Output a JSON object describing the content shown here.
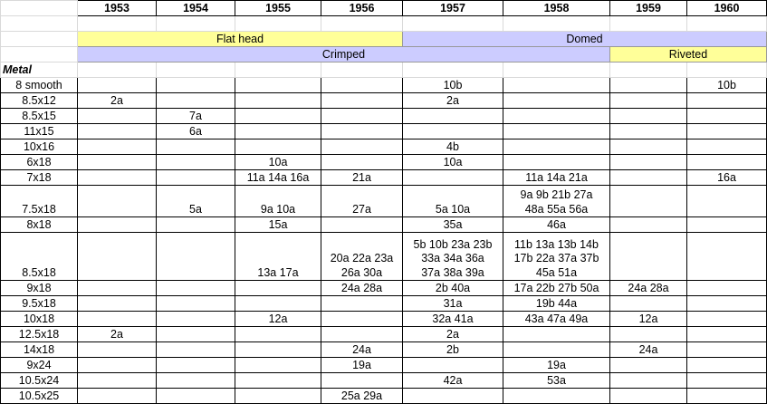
{
  "years": [
    "1953",
    "1954",
    "1955",
    "1956",
    "1957",
    "1958",
    "1959",
    "1960"
  ],
  "bands": {
    "flat_head": "Flat head",
    "domed": "Domed",
    "crimped": "Crimped",
    "riveted": "Riveted"
  },
  "metal_label": "Metal",
  "rows": [
    {
      "size": "8 smooth",
      "cells": [
        "",
        "",
        "",
        "",
        "10b",
        "",
        "",
        "10b"
      ]
    },
    {
      "size": "8.5x12",
      "cells": [
        "2a",
        "",
        "",
        "",
        "2a",
        "",
        "",
        ""
      ]
    },
    {
      "size": "8.5x15",
      "cells": [
        "",
        "7a",
        "",
        "",
        "",
        "",
        "",
        ""
      ]
    },
    {
      "size": "11x15",
      "cells": [
        "",
        "6a",
        "",
        "",
        "",
        "",
        "",
        ""
      ]
    },
    {
      "size": "10x16",
      "cells": [
        "",
        "",
        "",
        "",
        "4b",
        "",
        "",
        ""
      ]
    },
    {
      "size": "6x18",
      "cells": [
        "",
        "",
        "10a",
        "",
        "10a",
        "",
        "",
        ""
      ]
    },
    {
      "size": "7x18",
      "cells": [
        "",
        "",
        "11a 14a 16a",
        "21a",
        "",
        "11a 14a  21a",
        "",
        "16a"
      ]
    },
    {
      "size": "7.5x18",
      "cells": [
        "",
        "5a",
        "9a 10a",
        "27a",
        "5a 10a",
        "9a 9b 21b 27a\n48a 55a 56a",
        "",
        ""
      ]
    },
    {
      "size": "8x18",
      "cells": [
        "",
        "",
        "15a",
        "",
        "35a",
        "46a",
        "",
        ""
      ]
    },
    {
      "size": "8.5x18",
      "cells": [
        "",
        "",
        "13a 17a",
        "20a 22a 23a\n26a 30a",
        "5b 10b 23a 23b\n33a 34a 36a\n37a 38a 39a",
        "11b 13a 13b 14b\n17b 22a 37a 37b\n45a 51a",
        "",
        ""
      ]
    },
    {
      "size": "9x18",
      "cells": [
        "",
        "",
        "",
        "24a 28a",
        "2b 40a",
        "17a 22b 27b 50a",
        "24a 28a",
        ""
      ]
    },
    {
      "size": "9.5x18",
      "cells": [
        "",
        "",
        "",
        "",
        "31a",
        "19b 44a",
        "",
        ""
      ]
    },
    {
      "size": "10x18",
      "cells": [
        "",
        "",
        "12a",
        "",
        "32a 41a",
        "43a 47a 49a",
        "12a",
        ""
      ]
    },
    {
      "size": "12.5x18",
      "cells": [
        "2a",
        "",
        "",
        "",
        "2a",
        "",
        "",
        ""
      ]
    },
    {
      "size": "14x18",
      "cells": [
        "",
        "",
        "",
        "24a",
        "2b",
        "",
        "24a",
        ""
      ]
    },
    {
      "size": "9x24",
      "cells": [
        "",
        "",
        "",
        "19a",
        "",
        "19a",
        "",
        ""
      ]
    },
    {
      "size": "10.5x24",
      "cells": [
        "",
        "",
        "",
        "",
        "42a",
        "53a",
        "",
        ""
      ]
    },
    {
      "size": "10.5x25",
      "cells": [
        "",
        "",
        "",
        "25a 29a",
        "",
        "",
        "",
        ""
      ]
    }
  ]
}
